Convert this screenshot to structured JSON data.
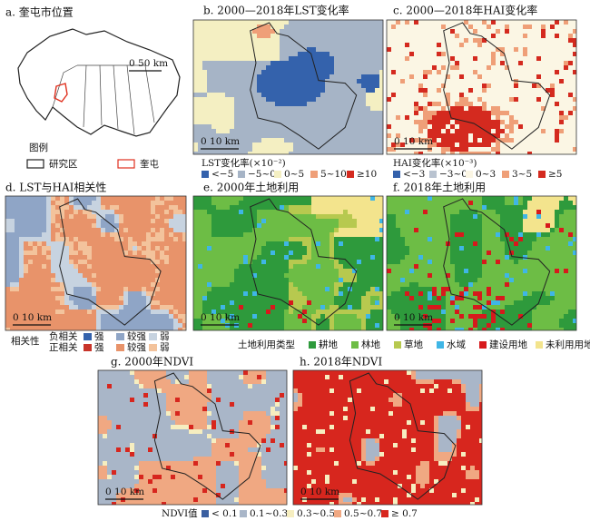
{
  "panels": [
    {
      "title": "a. 奎屯市位置",
      "scale": "0   50 km"
    },
    {
      "title": "b. 2000—2018年LST变化率",
      "scale": "0   10 km"
    },
    {
      "title": "c. 2000—2018年HAI变化率",
      "scale": "0   10 km"
    },
    {
      "title": "d. LST与HAI相关性",
      "scale": "0   10 km"
    },
    {
      "title": "e. 2000年土地利用",
      "scale": "0   10 km"
    },
    {
      "title": "f. 2018年土地利用",
      "scale": "0   10 km"
    },
    {
      "title": "g. 2000年NDVI",
      "scale": "0   10 km"
    },
    {
      "title": "h. 2018年NDVI",
      "scale": "0   10 km"
    }
  ],
  "location_legend": {
    "title": "图例",
    "items": [
      {
        "label": "研究区",
        "color": "#222222"
      },
      {
        "label": "奎屯",
        "color": "#e0301e"
      }
    ]
  },
  "legends": {
    "lst": {
      "title": "LST变化率(×10⁻²)",
      "items": [
        {
          "label": "<−5",
          "color": "#3462ac"
        },
        {
          "label": "−5~0",
          "color": "#a6b4c6"
        },
        {
          "label": "0~5",
          "color": "#f4efc2"
        },
        {
          "label": "5~10",
          "color": "#ef9f78"
        },
        {
          "label": "≥10",
          "color": "#d42a1f"
        }
      ]
    },
    "hai": {
      "title": "HAI变化率(×10⁻³)",
      "items": [
        {
          "label": "<−3",
          "color": "#3462ac"
        },
        {
          "label": "−3~0",
          "color": "#b9c3d0"
        },
        {
          "label": "0~3",
          "color": "#fbf6e4"
        },
        {
          "label": "3~5",
          "color": "#ef9f78"
        },
        {
          "label": "≥5",
          "color": "#d42a1f"
        }
      ]
    },
    "correlation": {
      "title": "相关性",
      "rows": [
        {
          "label": "负相关",
          "items": [
            {
              "label": "强",
              "color": "#3462ac"
            },
            {
              "label": "较强",
              "color": "#8fa5c6"
            },
            {
              "label": "弱",
              "color": "#c7d3e0"
            }
          ]
        },
        {
          "label": "正相关",
          "items": [
            {
              "label": "强",
              "color": "#c8342a"
            },
            {
              "label": "较强",
              "color": "#e8936a"
            },
            {
              "label": "弱",
              "color": "#f3c39c"
            }
          ]
        }
      ]
    },
    "landuse": {
      "title": "土地利用类型",
      "items": [
        {
          "label": "耕地",
          "color": "#2e9a3c"
        },
        {
          "label": "林地",
          "color": "#6dbd45"
        },
        {
          "label": "草地",
          "color": "#b7c94f"
        },
        {
          "label": "水域",
          "color": "#3fb6e6"
        },
        {
          "label": "建设用地",
          "color": "#d7191c"
        },
        {
          "label": "未利用用地",
          "color": "#f3e48d"
        }
      ]
    },
    "ndvi": {
      "title": "NDVI值",
      "items": [
        {
          "label": "< 0.1",
          "color": "#3a5fa0"
        },
        {
          "label": "0.1~0.3",
          "color": "#a9b6c8"
        },
        {
          "label": "0.3~0.5",
          "color": "#f6eec0"
        },
        {
          "label": "0.5~0.7",
          "color": "#f0a882"
        },
        {
          "label": "≥ 0.7",
          "color": "#d7261e"
        }
      ]
    }
  }
}
